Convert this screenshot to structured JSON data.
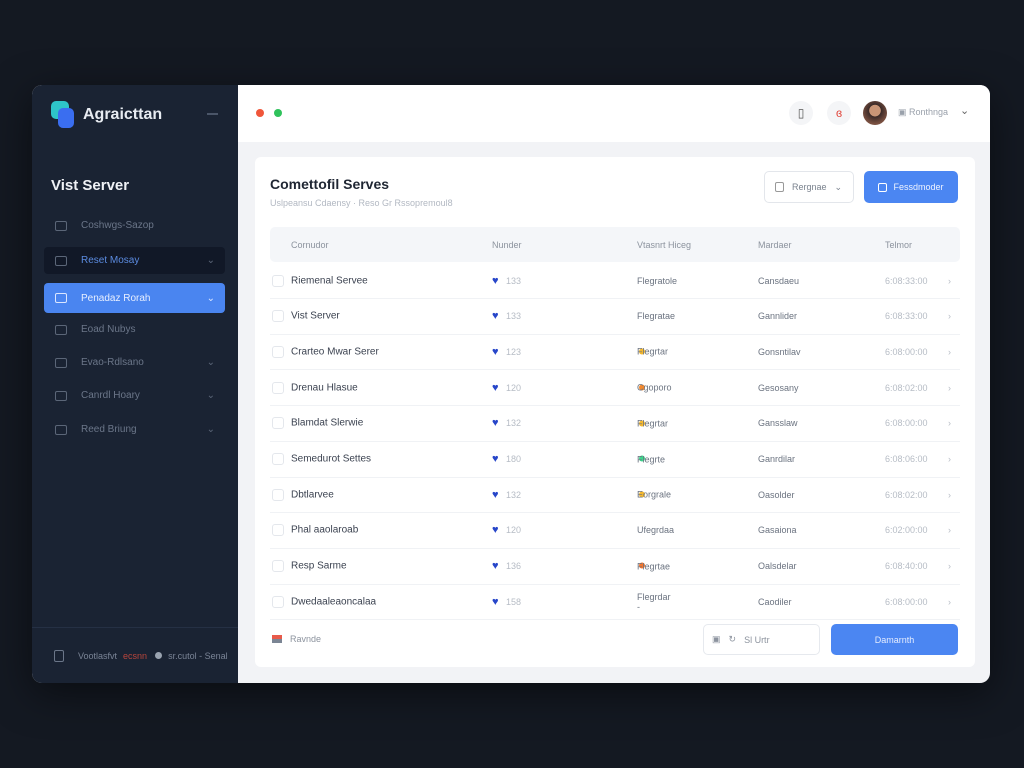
{
  "app": {
    "brand": "Agraicttan",
    "section_title": "Vist Server"
  },
  "sidebar": {
    "items": [
      {
        "label": "Coshwgs-Sazop",
        "icon": "gear-icon",
        "chevron": false,
        "state": "normal"
      },
      {
        "label": "Reset Mosay",
        "icon": "server-icon",
        "chevron": true,
        "state": "highlight"
      },
      {
        "label": "Penadaz Rorah",
        "icon": "server-rack-icon",
        "chevron": true,
        "state": "active"
      },
      {
        "label": "Eoad Nubys",
        "icon": "user-icon",
        "chevron": false,
        "state": "normal"
      },
      {
        "label": "Evao-Rdlsano",
        "icon": "printer-icon",
        "chevron": true,
        "state": "normal"
      },
      {
        "label": "Canrdl Hoary",
        "icon": "tablet-icon",
        "chevron": true,
        "state": "normal"
      },
      {
        "label": "Reed Briung",
        "icon": "database-icon",
        "chevron": true,
        "state": "normal"
      }
    ],
    "footer": {
      "text": "Vootlasfvt",
      "highlight": "ecsnn",
      "status": "sr.cutol - Senal"
    }
  },
  "topbar": {
    "username": "Ronthnga",
    "colors": {
      "red": "#f0563a",
      "green": "#2fc25b"
    }
  },
  "card": {
    "title": "Comettofil Serves",
    "subtitle": "Uslpeansu Cdaensy · Reso Gr Rssopremoul8",
    "filter_label": "Rergnae",
    "primary_label": "Fessdmoder",
    "columns": [
      "Cornudor",
      "Nunder",
      "Vtasnrt Hiceg",
      "Mardaer",
      "Telmor"
    ],
    "rows": [
      {
        "name": "Riemenal Servee",
        "num": "133",
        "type": "Flegratole",
        "status": null,
        "owner": "Cansdaeu",
        "date": "6:08:33:00"
      },
      {
        "name": "Vist Server",
        "num": "133",
        "type": "Flegratae",
        "status": null,
        "owner": "Gannlider",
        "date": "6:08:33:00"
      },
      {
        "name": "Crarteo Mwar Serer",
        "num": "123",
        "type": "Flegrtar",
        "status": "#f5b82e",
        "owner": "Gonsntilav",
        "date": "6:08:00:00"
      },
      {
        "name": "Drenau Hlasue",
        "num": "120",
        "type": "Cgoporo",
        "status": "#f2892e",
        "owner": "Gesosany",
        "date": "6:08:02:00"
      },
      {
        "name": "Blamdat Slerwie",
        "num": "132",
        "type": "Flegrtar",
        "status": "#f5b82e",
        "owner": "Gansslaw",
        "date": "6:08:00:00"
      },
      {
        "name": "Semedurot Settes",
        "num": "180",
        "type": "Flegrte",
        "status": "#3dd68c",
        "owner": "Ganrdilar",
        "date": "6:08:06:00"
      },
      {
        "name": "Dbtlarvee",
        "num": "132",
        "type": "Eorgrale",
        "status": "#f5b82e",
        "owner": "Oasolder",
        "date": "6:08:02:00"
      },
      {
        "name": "Phal aaolaroab",
        "num": "120",
        "type": "Ufegrdaa",
        "status": null,
        "owner": "Gasaiona",
        "date": "6:02:00:00"
      },
      {
        "name": "Resp Sarme",
        "num": "136",
        "type": "Flegrtae",
        "status": "#f2762e",
        "owner": "Oalsdelar",
        "date": "6:08:40:00"
      },
      {
        "name": "Dwedaaleaoncalaa",
        "num": "158",
        "type": "Flegrdar -",
        "status": null,
        "owner": "Caodiler",
        "date": "6:08:00:00"
      }
    ],
    "footer_label": "Ravnde",
    "pager_label": "Sl Urtr",
    "submit_label": "Damarnth"
  },
  "colors": {
    "accent": "#4b86f2",
    "sidebar": "#1a2333"
  }
}
